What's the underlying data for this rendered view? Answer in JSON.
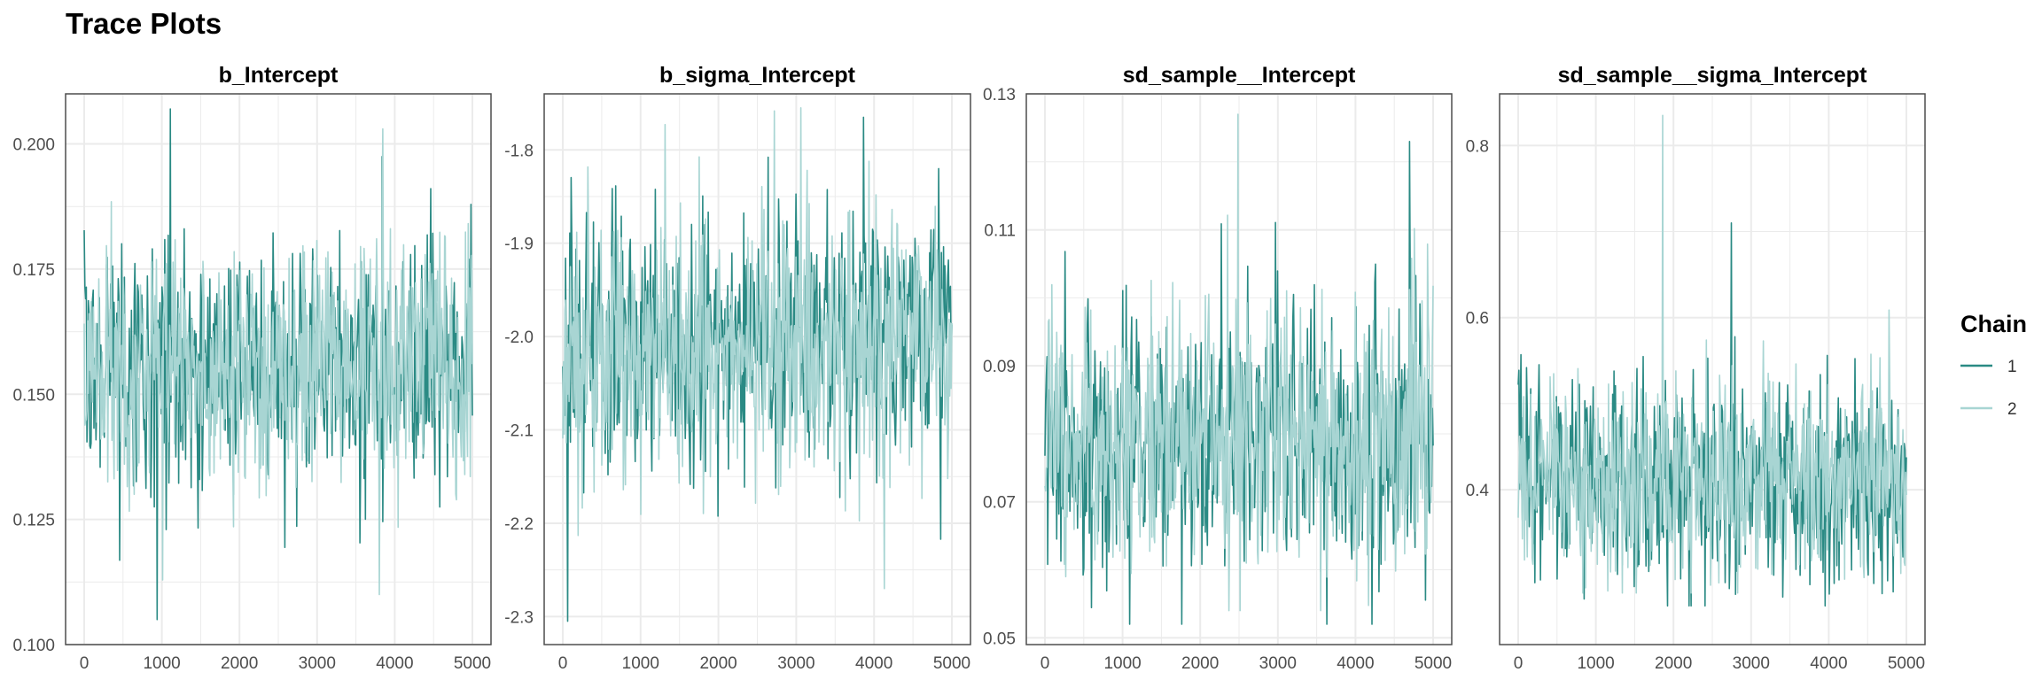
{
  "page_title": "Trace Plots",
  "colors": {
    "chain_1": "#2a8a84",
    "chain_2": "#a8d5d3",
    "grid": "#ebebeb",
    "panel_border": "#4d4d4d"
  },
  "legend": {
    "title": "Chain",
    "items": [
      {
        "label": "1",
        "color": "#2a8a84"
      },
      {
        "label": "2",
        "color": "#a8d5d3"
      }
    ]
  },
  "chart_data": [
    {
      "type": "line",
      "title": "b_Intercept",
      "xlabel": "",
      "ylabel": "",
      "xlim": [
        0,
        5000
      ],
      "ylim": [
        0.1,
        0.21
      ],
      "x_ticks": [
        0,
        1000,
        2000,
        3000,
        4000,
        5000
      ],
      "y_ticks": [
        0.1,
        0.125,
        0.15,
        0.175,
        0.2
      ],
      "y_tick_labels": [
        "0.100",
        "0.125",
        "0.150",
        "0.175",
        "0.200"
      ],
      "grid": true,
      "iterations": 5000,
      "series": [
        {
          "name": "1",
          "mean": 0.1555,
          "sd": 0.0125,
          "min": 0.105,
          "max": 0.207
        },
        {
          "name": "2",
          "mean": 0.1555,
          "sd": 0.0125,
          "min": 0.11,
          "max": 0.203
        }
      ]
    },
    {
      "type": "line",
      "title": "b_sigma_Intercept",
      "xlabel": "",
      "ylabel": "",
      "xlim": [
        0,
        5000
      ],
      "ylim": [
        -2.33,
        -1.74
      ],
      "x_ticks": [
        0,
        1000,
        2000,
        3000,
        4000,
        5000
      ],
      "y_ticks": [
        -2.3,
        -2.2,
        -2.1,
        -2.0,
        -1.9,
        -1.8
      ],
      "y_tick_labels": [
        "-2.3",
        "-2.2",
        "-2.1",
        "-2.0",
        "-1.9",
        "-1.8"
      ],
      "grid": true,
      "iterations": 5000,
      "series": [
        {
          "name": "1",
          "mean": -2.005,
          "sd": 0.07,
          "min": -2.305,
          "max": -1.765
        },
        {
          "name": "2",
          "mean": -2.005,
          "sd": 0.07,
          "min": -2.27,
          "max": -1.755
        }
      ]
    },
    {
      "type": "line",
      "title": "sd_sample__Intercept",
      "xlabel": "",
      "ylabel": "",
      "xlim": [
        0,
        5000
      ],
      "ylim": [
        0.049,
        0.13
      ],
      "x_ticks": [
        0,
        1000,
        2000,
        3000,
        4000,
        5000
      ],
      "y_ticks": [
        0.05,
        0.07,
        0.09,
        0.11,
        0.13
      ],
      "y_tick_labels": [
        "0.05",
        "0.07",
        "0.09",
        "0.11",
        "0.13"
      ],
      "grid": true,
      "iterations": 5000,
      "series": [
        {
          "name": "1",
          "mean": 0.079,
          "sd": 0.01,
          "min": 0.052,
          "max": 0.123
        },
        {
          "name": "2",
          "mean": 0.079,
          "sd": 0.01,
          "min": 0.054,
          "max": 0.127
        }
      ]
    },
    {
      "type": "line",
      "title": "sd_sample__sigma_Intercept",
      "xlabel": "",
      "ylabel": "",
      "xlim": [
        0,
        5000
      ],
      "ylim": [
        0.22,
        0.86
      ],
      "x_ticks": [
        0,
        1000,
        2000,
        3000,
        4000,
        5000
      ],
      "y_ticks": [
        0.4,
        0.6,
        0.8
      ],
      "y_tick_labels": [
        "0.4",
        "0.6",
        "0.8"
      ],
      "grid": true,
      "iterations": 5000,
      "series": [
        {
          "name": "1",
          "mean": 0.415,
          "sd": 0.06,
          "min": 0.265,
          "max": 0.71
        },
        {
          "name": "2",
          "mean": 0.415,
          "sd": 0.06,
          "min": 0.28,
          "max": 0.835
        }
      ]
    }
  ]
}
